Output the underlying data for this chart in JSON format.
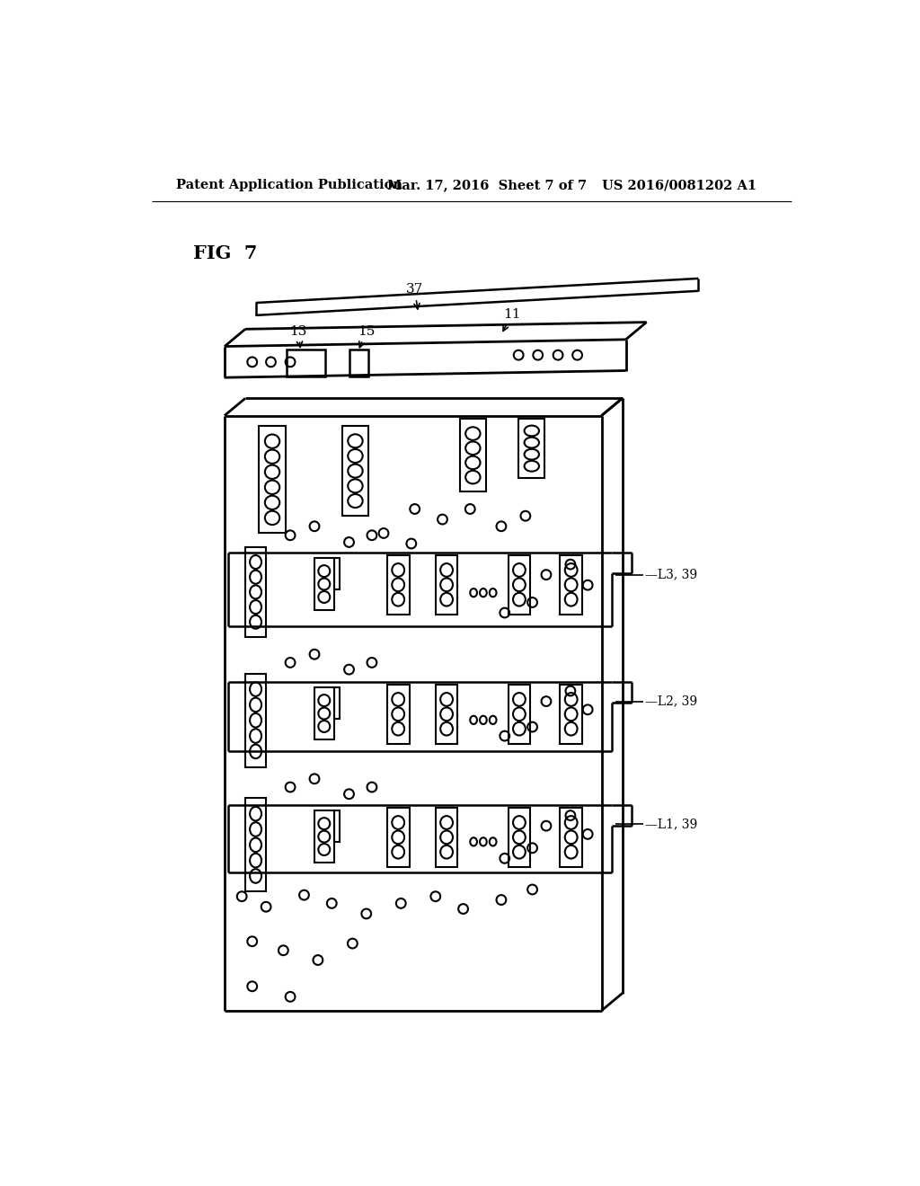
{
  "title_left": "Patent Application Publication",
  "title_center": "Mar. 17, 2016  Sheet 7 of 7",
  "title_right": "US 2016/0081202 A1",
  "fig_label": "FIG  7",
  "bg_color": "#ffffff",
  "line_color": "#000000"
}
